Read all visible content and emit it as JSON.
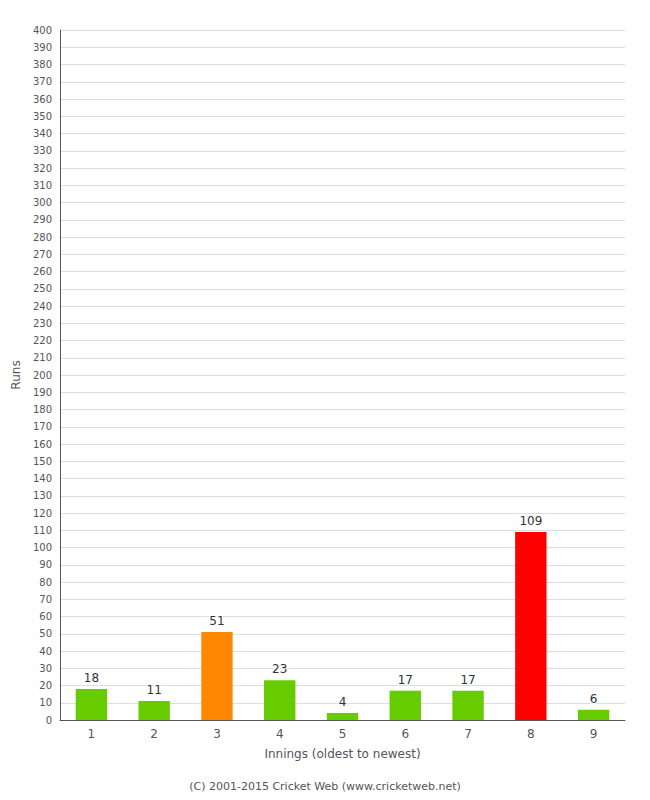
{
  "chart_data": {
    "type": "bar",
    "xlabel": "Innings (oldest to newest)",
    "ylabel": "Runs",
    "categories": [
      "1",
      "2",
      "3",
      "4",
      "5",
      "6",
      "7",
      "8",
      "9"
    ],
    "values": [
      18,
      11,
      51,
      23,
      4,
      17,
      17,
      109,
      6
    ],
    "colors": [
      "#66cc00",
      "#66cc00",
      "#ff8800",
      "#66cc00",
      "#66cc00",
      "#66cc00",
      "#66cc00",
      "#ff0000",
      "#66cc00"
    ],
    "ylim": [
      0,
      400
    ],
    "yticks": [
      0,
      10,
      20,
      30,
      40,
      50,
      60,
      70,
      80,
      90,
      100,
      110,
      120,
      130,
      140,
      150,
      160,
      170,
      180,
      190,
      200,
      210,
      220,
      230,
      240,
      250,
      260,
      270,
      280,
      290,
      300,
      310,
      320,
      330,
      340,
      350,
      360,
      370,
      380,
      390,
      400
    ],
    "grid": true,
    "data_labels": true,
    "annotations": [
      "(C) 2001-2015 Cricket Web (www.cricketweb.net)"
    ]
  }
}
